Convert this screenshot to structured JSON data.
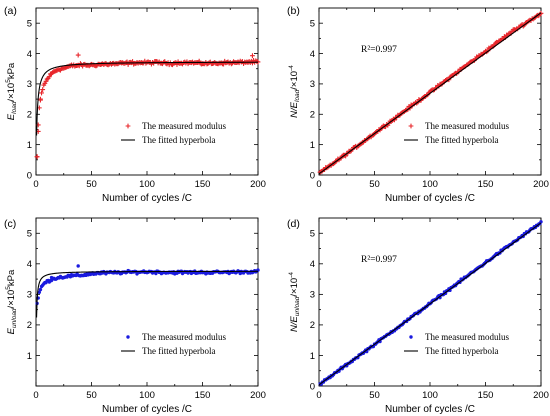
{
  "chart_data": [
    {
      "panel": "(a)",
      "type": "scatter",
      "xlabel": "Number of cycles /C",
      "ylabel_main": "E",
      "ylabel_sub": "load",
      "ylabel_unit": "/×10",
      "ylabel_exp": "5",
      "ylabel_tail": "kPa",
      "xlim": [
        0,
        200
      ],
      "ylim": [
        0,
        5.5
      ],
      "xticks": [
        "0",
        "50",
        "100",
        "150",
        "200"
      ],
      "yticks": [
        "0",
        "1",
        "2",
        "3",
        "4",
        "5"
      ],
      "annotation": "",
      "legend": [
        "The measured modulus",
        "The fitted hyperbola"
      ],
      "marker": "plus",
      "color": "#e8262b",
      "fit": {
        "kind": "hyperbola",
        "a": 0.25,
        "b": 0.268
      },
      "outliers": [
        [
          1,
          0.6
        ],
        [
          2,
          1.65
        ],
        [
          4,
          2.5
        ],
        [
          38,
          3.95
        ],
        [
          195,
          3.93
        ]
      ],
      "series": [
        {
          "name": "The measured modulus",
          "x": [
            1,
            3,
            5,
            7,
            10,
            13,
            16,
            20,
            25,
            30,
            35,
            40,
            50,
            60,
            70,
            80,
            90,
            100,
            110,
            120,
            130,
            140,
            150,
            160,
            170,
            180,
            190,
            200
          ],
          "y": [
            0.6,
            2.2,
            2.7,
            2.95,
            3.15,
            3.3,
            3.4,
            3.48,
            3.52,
            3.58,
            3.6,
            3.62,
            3.62,
            3.65,
            3.66,
            3.68,
            3.7,
            3.7,
            3.7,
            3.68,
            3.7,
            3.7,
            3.68,
            3.68,
            3.7,
            3.7,
            3.72,
            3.72
          ]
        }
      ]
    },
    {
      "panel": "(b)",
      "type": "scatter",
      "xlabel": "Number of cycles /C",
      "ylabel_main": "N/E",
      "ylabel_sub": "load",
      "ylabel_unit": "/×10",
      "ylabel_exp": "-4",
      "ylabel_tail": "",
      "xlim": [
        0,
        200
      ],
      "ylim": [
        0,
        5.5
      ],
      "xticks": [
        "0",
        "50",
        "100",
        "150",
        "200"
      ],
      "yticks": [
        "0",
        "1",
        "2",
        "3",
        "4",
        "5"
      ],
      "annotation": "R²=0.997",
      "legend": [
        "The measured modulus",
        "The fitted hyperbola"
      ],
      "marker": "plus",
      "color": "#e8262b",
      "fit": {
        "kind": "line",
        "a": 0.25,
        "b": 0.268
      },
      "outliers": [],
      "series": [
        {
          "name": "The measured modulus",
          "x": [
            0,
            25,
            50,
            75,
            100,
            125,
            150,
            175,
            200
          ],
          "y": [
            0.05,
            0.7,
            1.37,
            2.05,
            2.72,
            3.4,
            4.07,
            4.75,
            5.32
          ]
        }
      ]
    },
    {
      "panel": "(c)",
      "type": "scatter",
      "xlabel": "Number of cycles /C",
      "ylabel_main": "E",
      "ylabel_sub": "unload",
      "ylabel_unit": "/×10",
      "ylabel_exp": "5",
      "ylabel_tail": "kPa",
      "xlim": [
        0,
        200
      ],
      "ylim": [
        0,
        5.5
      ],
      "xticks": [
        "0",
        "50",
        "100",
        "150",
        "200"
      ],
      "yticks": [
        "1",
        "2",
        "3",
        "4",
        "5"
      ],
      "annotation": "",
      "legend": [
        "The measured modulus",
        "The fitted hyperbola"
      ],
      "marker": "dot",
      "color": "#1a1adf",
      "fit": {
        "kind": "hyperbola",
        "a": 0.09,
        "b": 0.266
      },
      "outliers": [
        [
          38,
          3.93
        ],
        [
          14,
          3.55
        ]
      ],
      "series": [
        {
          "name": "The measured modulus",
          "x": [
            1,
            3,
            5,
            7,
            10,
            15,
            20,
            30,
            40,
            50,
            60,
            80,
            100,
            120,
            140,
            160,
            180,
            200
          ],
          "y": [
            2.7,
            3.05,
            3.25,
            3.35,
            3.42,
            3.5,
            3.55,
            3.6,
            3.62,
            3.68,
            3.7,
            3.72,
            3.74,
            3.72,
            3.72,
            3.72,
            3.73,
            3.75
          ]
        }
      ]
    },
    {
      "panel": "(d)",
      "type": "scatter",
      "xlabel": "Number of cycles /C",
      "ylabel_main": "N/E",
      "ylabel_sub": "unload",
      "ylabel_unit": "/×10",
      "ylabel_exp": "-4",
      "ylabel_tail": "",
      "xlim": [
        0,
        200
      ],
      "ylim": [
        0,
        5.5
      ],
      "xticks": [
        "0",
        "50",
        "100",
        "150",
        "200"
      ],
      "yticks": [
        "0",
        "1",
        "2",
        "3",
        "4",
        "5"
      ],
      "annotation": "R²=0.997",
      "legend": [
        "The measured modulus",
        "The fitted hyperbola"
      ],
      "marker": "dot",
      "color": "#1a1adf",
      "fit": {
        "kind": "line",
        "a": 0.09,
        "b": 0.266
      },
      "outliers": [],
      "series": [
        {
          "name": "The measured modulus",
          "x": [
            0,
            25,
            50,
            75,
            100,
            125,
            150,
            175,
            200
          ],
          "y": [
            0.03,
            0.7,
            1.36,
            2.03,
            2.7,
            3.37,
            4.04,
            4.7,
            5.35
          ]
        }
      ]
    }
  ]
}
